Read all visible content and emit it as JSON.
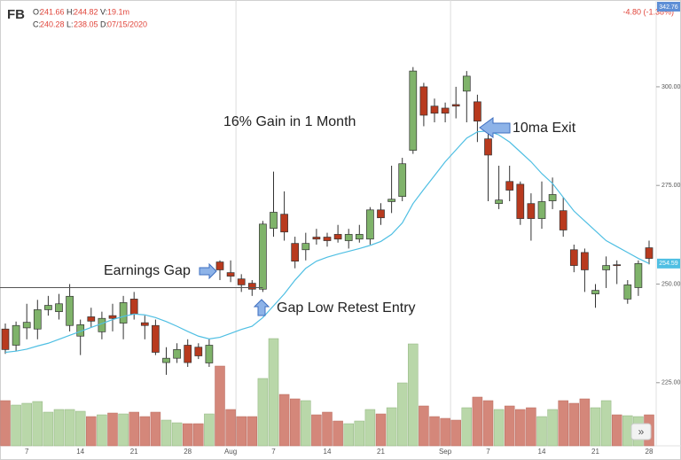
{
  "chart_data": {
    "type": "candlestick",
    "title": "FB",
    "info": [
      {
        "key": "O:",
        "value": "241.66"
      },
      {
        "key": "H:",
        "value": "244.82"
      },
      {
        "key": "V:",
        "value": "19.1m"
      },
      {
        "key": "C:",
        "value": "240.28"
      },
      {
        "key": "L:",
        "value": "238.05"
      },
      {
        "key": "D:",
        "value": "07/15/2020"
      }
    ],
    "change": "-4.80 (-1.38%)",
    "top_price": "342.76",
    "ma_label": "254.59",
    "annotations": [
      "16% Gain in 1 Month",
      "10ma Exit",
      "Earnings Gap",
      "Gap Low Retest Entry"
    ],
    "categories": [
      null,
      null,
      "7",
      null,
      null,
      null,
      null,
      "14",
      null,
      null,
      null,
      null,
      "21",
      null,
      null,
      null,
      null,
      "28",
      null,
      null,
      null,
      "Aug",
      null,
      null,
      null,
      "7",
      null,
      null,
      null,
      null,
      "14",
      null,
      null,
      null,
      null,
      "21",
      null,
      null,
      null,
      null,
      null,
      "Sep",
      null,
      null,
      null,
      "7",
      null,
      null,
      null,
      null,
      "14",
      null,
      null,
      null,
      null,
      "21",
      null,
      null,
      null,
      null,
      "28"
    ],
    "open": [
      238.6,
      234.5,
      238.9,
      238.6,
      243.5,
      243,
      239.5,
      236.8,
      241.7,
      237.9,
      242,
      240.1,
      246.2,
      240.2,
      239.5,
      230.1,
      231.2,
      234.5,
      234,
      230,
      255.6,
      252.9,
      251.3,
      250.2,
      248.7,
      264.1,
      267.7,
      260.3,
      258.7,
      261.9,
      261.9,
      262.6,
      261,
      261.4,
      261.4,
      268.8,
      270.9,
      272.2,
      283.9,
      300,
      295.1,
      294.6,
      295.5,
      298.9,
      296.2,
      286.8,
      270.4,
      276,
      275.3,
      270.4,
      266.6,
      271.1,
      268.6,
      258.7,
      258,
      247.5,
      253.6,
      254.9,
      246.2,
      249.1,
      259.2
    ],
    "high": [
      240,
      240.5,
      245,
      246,
      247,
      247.5,
      250,
      241,
      244,
      243,
      245,
      247,
      248,
      242,
      241,
      234,
      235,
      236,
      235,
      236,
      256,
      256,
      252.5,
      251,
      266,
      278.5,
      273.5,
      262,
      263,
      264,
      263,
      265,
      264,
      265,
      269.5,
      270.5,
      280,
      282,
      305,
      301,
      297,
      296,
      300,
      304,
      298,
      288.5,
      280,
      280,
      276,
      273,
      276,
      277,
      272,
      260,
      259,
      250,
      257,
      256,
      251,
      256,
      261
    ],
    "low": [
      232.3,
      233,
      236,
      236,
      242,
      241,
      238,
      232,
      239,
      236,
      238,
      236,
      241,
      236,
      232,
      227,
      230,
      229,
      231,
      229,
      251,
      250.5,
      248,
      247,
      248,
      262,
      261,
      254,
      256,
      260,
      259.5,
      260.5,
      259,
      260.5,
      260,
      265,
      268,
      271,
      283,
      290,
      291,
      291,
      292,
      291,
      286,
      271,
      269,
      271,
      265,
      261,
      264,
      269,
      262,
      253,
      248,
      244,
      249,
      250,
      245,
      247,
      255
    ],
    "close": [
      233.4,
      239.5,
      240.3,
      243.5,
      244.6,
      245,
      246.9,
      239.7,
      240.6,
      241.3,
      241.3,
      245.3,
      242.4,
      239.5,
      232.7,
      231.2,
      233.4,
      230.1,
      231.8,
      234.5,
      253.6,
      252,
      249.8,
      248.7,
      265.2,
      268.2,
      263.2,
      255.8,
      260.3,
      261.4,
      261,
      261.4,
      262.6,
      262.6,
      268.8,
      266.8,
      271.5,
      280.5,
      304,
      292.8,
      293.3,
      293.3,
      295.1,
      302.7,
      291.3,
      282.7,
      271.3,
      273.8,
      266.6,
      266.6,
      270.9,
      272.7,
      263.7,
      254.7,
      253.6,
      248.4,
      254.7,
      254.7,
      249.8,
      255.2,
      256.5
    ],
    "volume": [
      20.4,
      18.4,
      19.2,
      20,
      15.2,
      16.4,
      16.4,
      15.6,
      13.2,
      14,
      14.8,
      14.4,
      15.2,
      13.2,
      15.2,
      11.6,
      10.4,
      10,
      10,
      14.4,
      36,
      16.4,
      13.2,
      13.2,
      30.4,
      48.4,
      23.2,
      21.2,
      20.4,
      14,
      15.2,
      11.2,
      10,
      11.2,
      16.4,
      14.4,
      17.2,
      28.4,
      46,
      18,
      13.2,
      12.4,
      11.6,
      17.2,
      22,
      20.4,
      16.4,
      18,
      16.4,
      17.2,
      13.2,
      16.4,
      20.4,
      19.2,
      21.2,
      17.2,
      20.4,
      14,
      13.6,
      13.2,
      14
    ],
    "ma": {
      "color": "#4fbfe3",
      "values": [
        232.7,
        233,
        233.5,
        234.3,
        235,
        236,
        237,
        238,
        239,
        240,
        241,
        241.8,
        242.4,
        242.2,
        241.5,
        240.5,
        239.3,
        238,
        236.8,
        236.1,
        236.5,
        237.5,
        238.5,
        239.3,
        241.5,
        244.5,
        247.5,
        251,
        254,
        255.8,
        256.8,
        257.6,
        258.3,
        259,
        259.8,
        260.8,
        262.6,
        265.5,
        270.4,
        274,
        277.5,
        281,
        284,
        287,
        288.6,
        288.8,
        287.8,
        286,
        283.5,
        281,
        278,
        275.5,
        272,
        268.5,
        266,
        263.5,
        261,
        259.5,
        258,
        256.5,
        255.2
      ]
    },
    "level": 249.1,
    "up_color": "#7fb36a",
    "down_color": "#b83a1e",
    "up_volume_color": "#b9d7a9",
    "down_volume_color": "#d4877a",
    "ylim": [
      209,
      322
    ],
    "yticks": [
      {
        "value": 225,
        "label": "225.00"
      },
      {
        "value": 250,
        "label": "250.00"
      },
      {
        "value": 275,
        "label": "275.00"
      },
      {
        "value": 300,
        "label": "300.00"
      }
    ],
    "grid": false
  }
}
